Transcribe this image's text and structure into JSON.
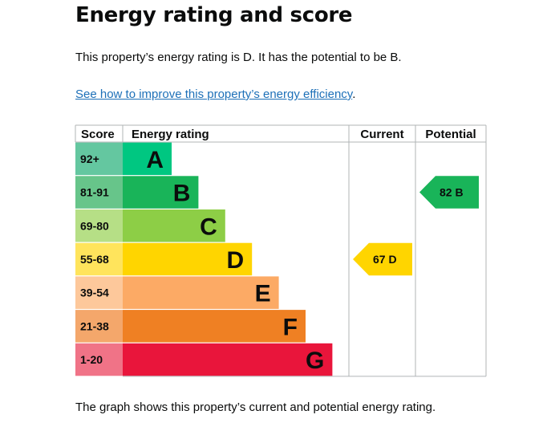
{
  "page": {
    "title": "Energy rating and score",
    "summary": "This property’s energy rating is D. It has the potential to be B.",
    "improve_link": "See how to improve this property’s energy efficiency",
    "improve_suffix": ".",
    "footer": "The graph shows this property’s current and potential energy rating."
  },
  "chart_data": {
    "type": "bar",
    "headers": {
      "score": "Score",
      "rating": "Energy rating",
      "current": "Current",
      "potential": "Potential"
    },
    "bands": [
      {
        "letter": "A",
        "range": "92+",
        "color": "#00c781",
        "score_bg": "#64c7a0"
      },
      {
        "letter": "B",
        "range": "81-91",
        "color": "#19b459",
        "score_bg": "#67c58a"
      },
      {
        "letter": "C",
        "range": "69-80",
        "color": "#8dce46",
        "score_bg": "#b6df86"
      },
      {
        "letter": "D",
        "range": "55-68",
        "color": "#ffd500",
        "score_bg": "#ffe45c"
      },
      {
        "letter": "E",
        "range": "39-54",
        "color": "#fcaa65",
        "score_bg": "#fdc89b"
      },
      {
        "letter": "F",
        "range": "21-38",
        "color": "#ef8023",
        "score_bg": "#f4a76b"
      },
      {
        "letter": "G",
        "range": "1-20",
        "color": "#e9153b",
        "score_bg": "#f07387"
      }
    ],
    "current": {
      "score": 67,
      "rating": "D"
    },
    "potential": {
      "score": 82,
      "rating": "B"
    }
  }
}
